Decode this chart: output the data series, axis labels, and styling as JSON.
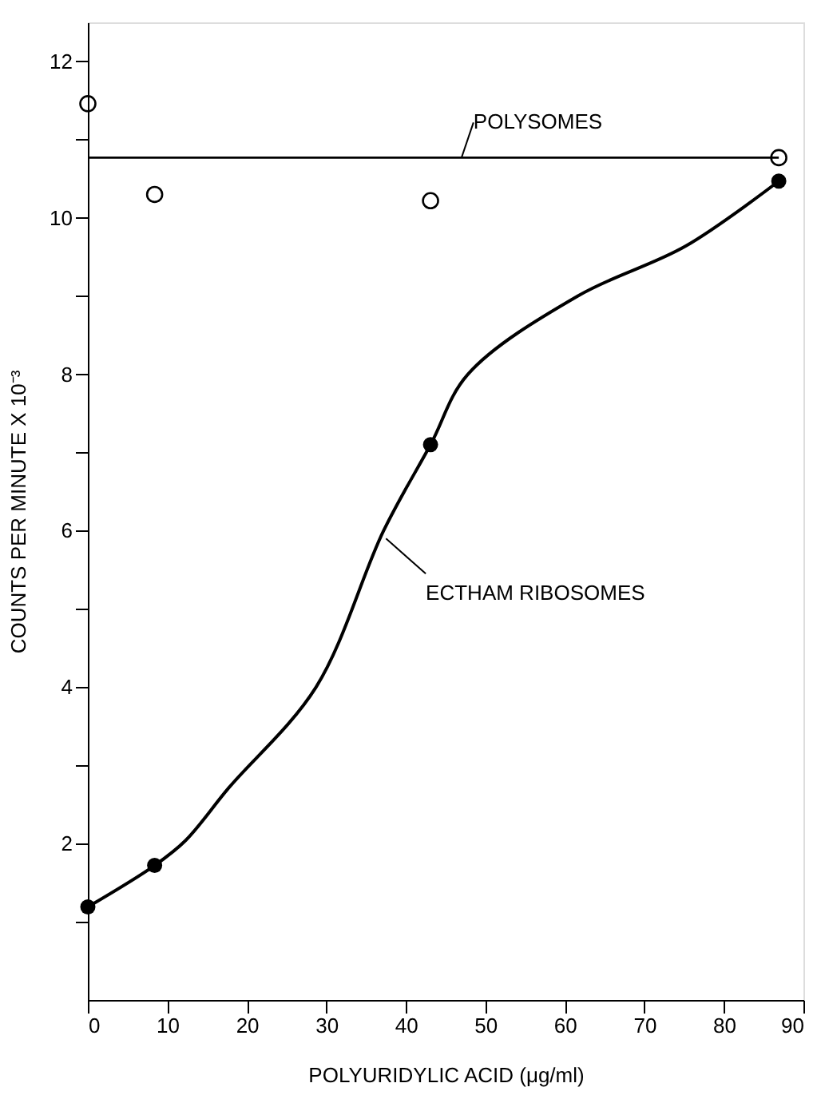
{
  "chart_data": {
    "type": "scatter",
    "xlabel": "POLYURIDYLIC ACID (μg/ml)",
    "ylabel": "COUNTS PER MINUTE X 10⁻³",
    "xlim": [
      0,
      90
    ],
    "xticks": [
      0,
      10,
      20,
      30,
      40,
      50,
      60,
      70,
      80,
      90
    ],
    "ylim": [
      0,
      12.5
    ],
    "yticks": [
      {
        "value": 1,
        "label": null
      },
      2,
      {
        "value": 3,
        "label": null
      },
      4,
      {
        "value": 5,
        "label": null
      },
      6,
      {
        "value": 7,
        "label": null
      },
      8,
      {
        "value": 9,
        "label": null
      },
      10,
      {
        "value": 11,
        "label": null
      },
      12
    ],
    "grid": false,
    "marker": "circle",
    "series": [
      {
        "color": "#000000",
        "x": [
          0,
          8.4,
          43.1,
          86.9
        ],
        "values": [
          11.46,
          10.3,
          10.22,
          10.77
        ]
      },
      {
        "type": "line",
        "color": "#000000",
        "marker": "none",
        "x": [
          0,
          86.9
        ],
        "values": [
          10.77,
          10.77
        ]
      },
      {
        "type": "line",
        "color": "#000000",
        "marker": "none",
        "x": [
          0,
          8.4,
          12.3,
          17.7,
          28.7,
          37.2,
          43.1,
          47.8,
          61.6,
          75.2,
          86.9
        ],
        "values": [
          1.19,
          1.72,
          2.04,
          2.71,
          4.0,
          6.0,
          7.1,
          8.0,
          9.0,
          9.64,
          10.47
        ]
      },
      {
        "color": "#000000",
        "x": [
          0,
          8.4,
          43.1,
          86.9
        ],
        "values": [
          1.19,
          1.72,
          7.1,
          10.47
        ]
      }
    ],
    "annotations": [
      {
        "text": "POLYSOMES",
        "x": 47,
        "y": 10.77
      },
      {
        "text": "ECTHAM RIBOSOMES",
        "x": 37.5,
        "y": 5.9
      }
    ]
  }
}
